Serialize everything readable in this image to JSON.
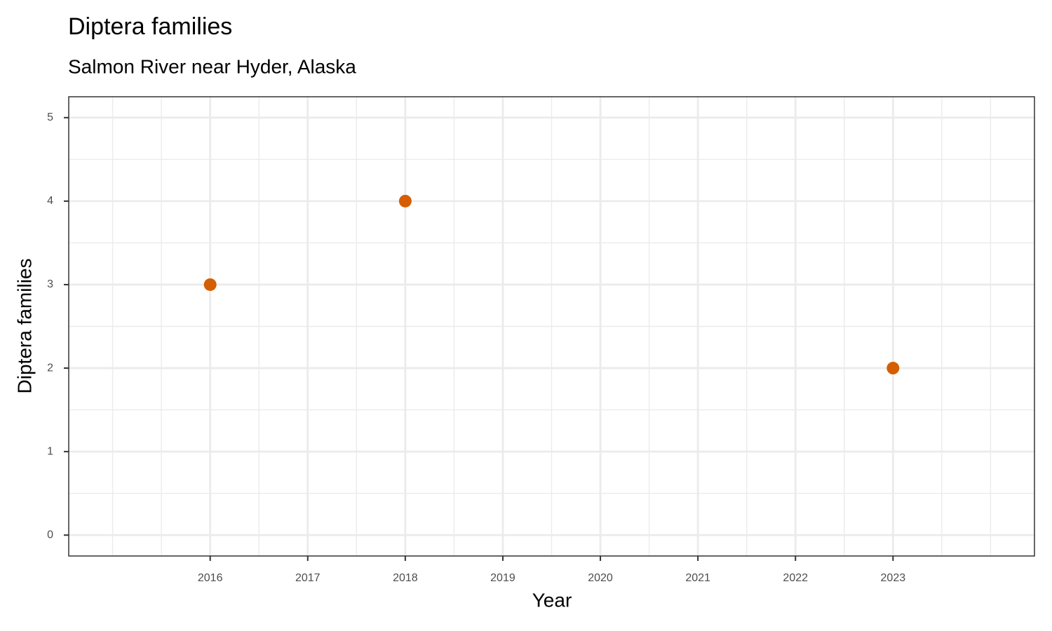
{
  "chart_data": {
    "type": "scatter",
    "title": "Diptera families",
    "subtitle": "Salmon River near Hyder, Alaska",
    "x_label": "Year",
    "y_label": "Diptera families",
    "x": [
      2016,
      2018,
      2023
    ],
    "values": [
      3,
      4,
      2
    ],
    "color": "#d55e00",
    "xlim": [
      2014.55,
      2024.45
    ],
    "xticks": [
      2016,
      2017,
      2018,
      2019,
      2020,
      2021,
      2022,
      2023
    ],
    "xminorticks": [
      2015,
      2015.5,
      2016.5,
      2017.5,
      2018.5,
      2019.5,
      2020.5,
      2021.5,
      2022.5,
      2023.5,
      2024
    ],
    "ylim": [
      -0.25,
      5.25
    ],
    "yticks": [
      0,
      1,
      2,
      3,
      4,
      5
    ],
    "yminorticks": [
      0.5,
      1.5,
      2.5,
      3.5,
      4.5
    ],
    "grid": true
  }
}
